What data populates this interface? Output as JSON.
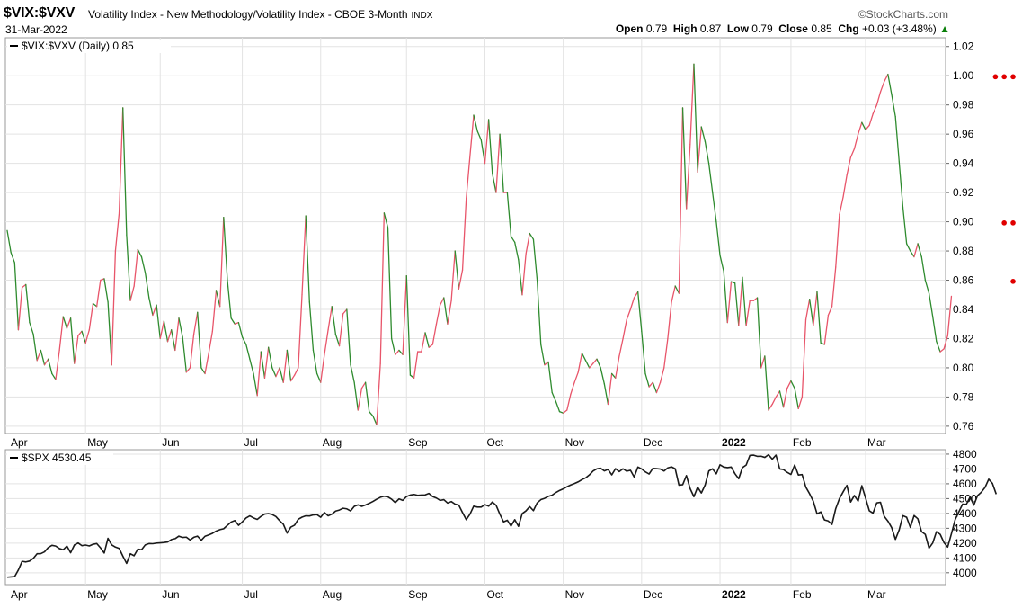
{
  "header": {
    "symbol": "$VIX:$VXV",
    "description": "Volatility Index - New Methodology/Volatility Index - CBOE 3-Month",
    "exchange": "INDX",
    "date": "31-Mar-2022",
    "brand": "©StockCharts.com",
    "open_label": "Open",
    "open": "0.79",
    "high_label": "High",
    "high": "0.87",
    "low_label": "Low",
    "low": "0.79",
    "close_label": "Close",
    "close": "0.85",
    "chg_label": "Chg",
    "chg": "+0.03 (+3.48%)",
    "chg_arrow": "▲"
  },
  "colors": {
    "up": "#e8556a",
    "down": "#2e8b2e",
    "spx": "#1a1a1a",
    "grid": "#e3e3e3",
    "dot": "#e00000"
  },
  "chart_data": [
    {
      "type": "line",
      "legend": "$VIX:$VXV (Daily) 0.85",
      "ylim": [
        0.755,
        1.026
      ],
      "yticks": [
        0.76,
        0.78,
        0.8,
        0.82,
        0.84,
        0.86,
        0.88,
        0.9,
        0.92,
        0.94,
        0.96,
        0.98,
        1.0,
        1.02
      ],
      "ytick_labels": [
        "0.76",
        "0.78",
        "0.80",
        "0.82",
        "0.84",
        "0.86",
        "0.88",
        "0.90",
        "0.92",
        "0.94",
        "0.96",
        "0.98",
        "1.00",
        "1.02"
      ],
      "annotations": [
        {
          "level": 1.0,
          "marker": "●●●"
        },
        {
          "level": 0.9,
          "marker": "●●"
        },
        {
          "level": 0.86,
          "marker": "●"
        }
      ],
      "x_count": 251,
      "values": [
        0.894,
        0.879,
        0.872,
        0.826,
        0.855,
        0.857,
        0.831,
        0.823,
        0.805,
        0.812,
        0.802,
        0.806,
        0.796,
        0.792,
        0.812,
        0.835,
        0.827,
        0.834,
        0.803,
        0.822,
        0.825,
        0.817,
        0.826,
        0.844,
        0.842,
        0.86,
        0.861,
        0.845,
        0.802,
        0.88,
        0.906,
        0.978,
        0.891,
        0.846,
        0.856,
        0.881,
        0.876,
        0.865,
        0.848,
        0.836,
        0.843,
        0.82,
        0.832,
        0.818,
        0.826,
        0.812,
        0.834,
        0.821,
        0.797,
        0.8,
        0.823,
        0.838,
        0.8,
        0.796,
        0.81,
        0.825,
        0.853,
        0.842,
        0.903,
        0.86,
        0.834,
        0.83,
        0.831,
        0.821,
        0.816,
        0.806,
        0.796,
        0.781,
        0.811,
        0.793,
        0.814,
        0.8,
        0.794,
        0.8,
        0.79,
        0.812,
        0.791,
        0.795,
        0.8,
        0.85,
        0.904,
        0.845,
        0.812,
        0.796,
        0.79,
        0.809,
        0.826,
        0.842,
        0.823,
        0.815,
        0.837,
        0.84,
        0.802,
        0.79,
        0.771,
        0.786,
        0.79,
        0.77,
        0.767,
        0.761,
        0.803,
        0.906,
        0.896,
        0.82,
        0.809,
        0.812,
        0.809,
        0.863,
        0.795,
        0.793,
        0.811,
        0.811,
        0.824,
        0.814,
        0.816,
        0.83,
        0.843,
        0.848,
        0.83,
        0.846,
        0.88,
        0.854,
        0.867,
        0.916,
        0.945,
        0.973,
        0.962,
        0.956,
        0.94,
        0.97,
        0.933,
        0.92,
        0.96,
        0.92,
        0.92,
        0.89,
        0.886,
        0.874,
        0.85,
        0.878,
        0.892,
        0.888,
        0.86,
        0.816,
        0.802,
        0.804,
        0.783,
        0.777,
        0.77,
        0.769,
        0.771,
        0.782,
        0.79,
        0.797,
        0.81,
        0.805,
        0.8,
        0.803,
        0.806,
        0.8,
        0.789,
        0.775,
        0.796,
        0.793,
        0.808,
        0.82,
        0.833,
        0.84,
        0.848,
        0.852,
        0.825,
        0.796,
        0.787,
        0.79,
        0.783,
        0.79,
        0.8,
        0.82,
        0.845,
        0.856,
        0.851,
        0.978,
        0.909,
        0.953,
        1.008,
        0.934,
        0.965,
        0.955,
        0.94,
        0.92,
        0.9,
        0.877,
        0.866,
        0.831,
        0.859,
        0.858,
        0.829,
        0.862,
        0.829,
        0.846,
        0.846,
        0.848,
        0.8,
        0.808,
        0.771,
        0.775,
        0.78,
        0.784,
        0.773,
        0.786,
        0.791,
        0.786,
        0.772,
        0.78,
        0.833,
        0.847,
        0.829,
        0.852,
        0.817,
        0.816,
        0.836,
        0.842,
        0.869,
        0.905,
        0.917,
        0.932,
        0.944,
        0.95,
        0.96,
        0.968,
        0.963,
        0.966,
        0.974,
        0.98,
        0.989,
        0.996,
        1.001,
        0.987,
        0.972,
        0.941,
        0.91,
        0.885,
        0.88,
        0.876,
        0.885,
        0.876,
        0.86,
        0.851,
        0.835,
        0.818,
        0.811,
        0.813,
        0.822,
        0.849
      ],
      "x_ticks": [
        {
          "label": "Apr",
          "index": 0
        },
        {
          "label": "May",
          "index": 21
        },
        {
          "label": "Jun",
          "index": 41
        },
        {
          "label": "Jul",
          "index": 63
        },
        {
          "label": "Aug",
          "index": 84
        },
        {
          "label": "Sep",
          "index": 107
        },
        {
          "label": "Oct",
          "index": 128
        },
        {
          "label": "Nov",
          "index": 149
        },
        {
          "label": "Dec",
          "index": 170
        },
        {
          "label": "2022",
          "index": 191
        },
        {
          "label": "Feb",
          "index": 210
        },
        {
          "label": "Mar",
          "index": 230
        }
      ]
    },
    {
      "type": "line",
      "legend": "$SPX 4530.45",
      "ylim": [
        3920,
        4830
      ],
      "yticks": [
        4000,
        4100,
        4200,
        4300,
        4400,
        4500,
        4600,
        4700,
        4800
      ],
      "ytick_labels": [
        "4000",
        "4100",
        "4200",
        "4300",
        "4400",
        "4500",
        "4600",
        "4700",
        "4800"
      ],
      "x_count": 251,
      "values": [
        3970,
        3972,
        3974,
        4019,
        4077,
        4073,
        4079,
        4097,
        4128,
        4129,
        4141,
        4170,
        4185,
        4180,
        4163,
        4155,
        4180,
        4135,
        4187,
        4201,
        4183,
        4187,
        4181,
        4192,
        4197,
        4168,
        4133,
        4232,
        4188,
        4173,
        4164,
        4112,
        4063,
        4128,
        4115,
        4159,
        4155,
        4188,
        4197,
        4196,
        4200,
        4202,
        4204,
        4208,
        4224,
        4230,
        4247,
        4238,
        4240,
        4221,
        4239,
        4247,
        4219,
        4246,
        4255,
        4266,
        4281,
        4291,
        4297,
        4320,
        4342,
        4352,
        4320,
        4343,
        4369,
        4384,
        4370,
        4360,
        4380,
        4396,
        4399,
        4393,
        4379,
        4351,
        4327,
        4268,
        4308,
        4321,
        4361,
        4375,
        4384,
        4383,
        4390,
        4392,
        4374,
        4406,
        4384,
        4395,
        4416,
        4423,
        4435,
        4431,
        4417,
        4448,
        4458,
        4448,
        4457,
        4468,
        4481,
        4496,
        4509,
        4516,
        4512,
        4496,
        4473,
        4498,
        4488,
        4514,
        4524,
        4528,
        4522,
        4524,
        4525,
        4535,
        4514,
        4504,
        4488,
        4493,
        4470,
        4480,
        4463,
        4456,
        4406,
        4358,
        4395,
        4449,
        4443,
        4443,
        4459,
        4449,
        4477,
        4455,
        4395,
        4343,
        4354,
        4315,
        4358,
        4313,
        4399,
        4417,
        4446,
        4419,
        4471,
        4493,
        4502,
        4515,
        4523,
        4541,
        4555,
        4566,
        4580,
        4592,
        4602,
        4613,
        4628,
        4640,
        4660,
        4686,
        4701,
        4705,
        4687,
        4697,
        4660,
        4702,
        4682,
        4701,
        4685,
        4691,
        4646,
        4713,
        4700,
        4680,
        4666,
        4704,
        4702,
        4699,
        4686,
        4707,
        4714,
        4701,
        4591,
        4594,
        4655,
        4567,
        4513,
        4577,
        4538,
        4591,
        4686,
        4701,
        4667,
        4728,
        4713,
        4709,
        4713,
        4668,
        4634,
        4709,
        4726,
        4791,
        4793,
        4785,
        4786,
        4778,
        4796,
        4766,
        4793,
        4700,
        4696,
        4677,
        4663,
        4726,
        4659,
        4662,
        4577,
        4533,
        4482,
        4397,
        4410,
        4356,
        4349,
        4326,
        4432,
        4500,
        4546,
        4589,
        4477,
        4521,
        4483,
        4587,
        4504,
        4418,
        4402,
        4471,
        4475,
        4380,
        4348,
        4304,
        4225,
        4289,
        4385,
        4374,
        4306,
        4386,
        4364,
        4277,
        4259,
        4166,
        4201,
        4277,
        4259,
        4204,
        4173,
        4263,
        4358,
        4411,
        4463,
        4461,
        4511,
        4456,
        4520,
        4543,
        4575,
        4631,
        4602,
        4530
      ]
    }
  ]
}
